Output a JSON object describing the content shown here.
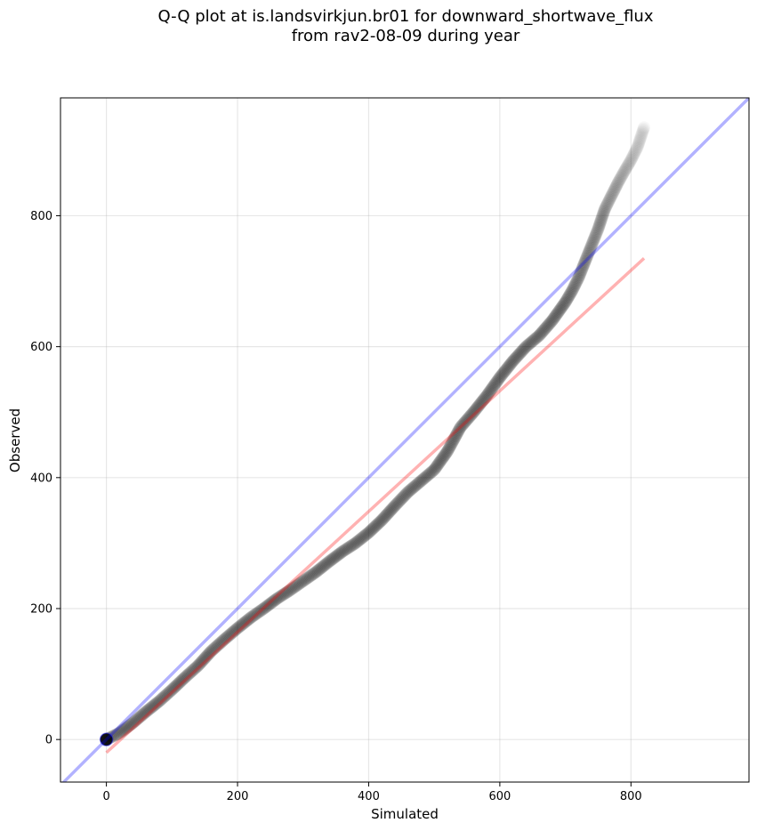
{
  "title_line1": "Q-Q plot at is.landsvirkjun.br01 for downward_shortwave_flux",
  "title_line2": "from rav2-08-09 during year",
  "chart_data": {
    "type": "scatter",
    "title": "Q-Q plot at is.landsvirkjun.br01 for downward_shortwave_flux\nfrom rav2-08-09 during year",
    "xlabel": "Simulated",
    "ylabel": "Observed",
    "xlim": [
      -70,
      980
    ],
    "ylim": [
      -65,
      980
    ],
    "xticks": [
      0,
      200,
      400,
      600,
      800
    ],
    "yticks": [
      0,
      200,
      400,
      600,
      800
    ],
    "grid": true,
    "quantiles": {
      "x": [
        0,
        10,
        20,
        40,
        60,
        80,
        100,
        120,
        140,
        160,
        180,
        200,
        220,
        240,
        260,
        280,
        300,
        320,
        340,
        360,
        380,
        400,
        420,
        440,
        460,
        480,
        500,
        520,
        540,
        560,
        580,
        600,
        620,
        640,
        660,
        680,
        700,
        710,
        720,
        730,
        740,
        750,
        760,
        770,
        780,
        790,
        800,
        810,
        820
      ],
      "y": [
        0,
        5,
        10,
        25,
        42,
        58,
        76,
        95,
        113,
        135,
        153,
        170,
        186,
        200,
        215,
        228,
        242,
        256,
        272,
        287,
        300,
        316,
        335,
        357,
        378,
        395,
        412,
        440,
        477,
        500,
        525,
        553,
        578,
        600,
        617,
        640,
        668,
        685,
        705,
        730,
        755,
        780,
        810,
        830,
        850,
        868,
        885,
        905,
        935
      ]
    },
    "series": [
      {
        "name": "",
        "kind": "reference line y = x",
        "color": "#0000ff",
        "alpha": 0.3
      },
      {
        "name": "",
        "kind": "linear fit",
        "color": "#ff0000",
        "alpha": 0.3,
        "x": [
          0,
          820
        ],
        "y": [
          -20,
          735
        ]
      }
    ]
  }
}
